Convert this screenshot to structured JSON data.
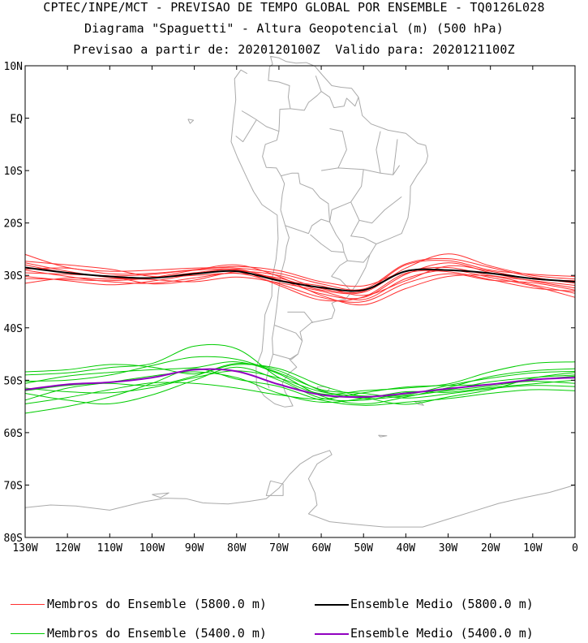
{
  "header": {
    "line1": "CPTEC/INPE/MCT - PREVISAO DE TEMPO GLOBAL POR ENSEMBLE - TQ0126L028",
    "line2": "Diagrama \"Spaguetti\" - Altura Geopotencial (m) (500 hPa)",
    "line3": "Previsao a partir de: 2020120100Z  Valido para: 2020121100Z"
  },
  "map": {
    "region": "South America and South Atlantic / South Pacific",
    "lon_range": [
      -130,
      0
    ],
    "lat_range": [
      -80,
      10
    ],
    "y_tick_labels": [
      "10N",
      "EQ",
      "10S",
      "20S",
      "30S",
      "40S",
      "50S",
      "60S",
      "70S",
      "80S"
    ],
    "y_tick_values": [
      10,
      0,
      -10,
      -20,
      -30,
      -40,
      -50,
      -60,
      -70,
      -80
    ],
    "x_tick_labels": [
      "130W",
      "120W",
      "110W",
      "100W",
      "90W",
      "80W",
      "70W",
      "60W",
      "50W",
      "40W",
      "30W",
      "20W",
      "10W",
      "0"
    ],
    "x_tick_values": [
      -130,
      -120,
      -110,
      -100,
      -90,
      -80,
      -70,
      -60,
      -50,
      -40,
      -30,
      -20,
      -10,
      0
    ],
    "coastline_color": "#aaaaaa",
    "grid": false
  },
  "legend": {
    "members_5800": {
      "label": "Membros do Ensemble (5800.0 m)",
      "color": "#ff3030"
    },
    "mean_5800": {
      "label": "Ensemble Medio (5800.0 m)",
      "color": "#000000"
    },
    "members_5400": {
      "label": "Membros do Ensemble (5400.0 m)",
      "color": "#00cc00"
    },
    "mean_5400": {
      "label": "Ensemble Medio (5400.0 m)",
      "color": "#9000c0"
    }
  },
  "chart_data": {
    "type": "line",
    "title": "Diagrama \"Spaguetti\" - Altura Geopotencial (m) (500 hPa)",
    "xlabel": "",
    "ylabel": "",
    "xlim": [
      -130,
      0
    ],
    "ylim": [
      -80,
      10
    ],
    "x": [
      -130,
      -120,
      -110,
      -100,
      -90,
      -80,
      -70,
      -60,
      -50,
      -40,
      -30,
      -20,
      -10,
      0
    ],
    "series": [
      {
        "name": "Ensemble Medio (5800.0 m)",
        "color": "#000000",
        "y": [
          -28.5,
          -29.5,
          -30.2,
          -30.5,
          -29.7,
          -29.2,
          -31.0,
          -32.3,
          -32.8,
          -29.2,
          -29.0,
          -29.6,
          -30.6,
          -31.2
        ]
      },
      {
        "name": "Ensemble Medio (5400.0 m)",
        "color": "#9000c0",
        "y": [
          -51.8,
          -50.8,
          -50.4,
          -49.5,
          -48.0,
          -48.3,
          -50.8,
          -52.8,
          -53.2,
          -52.5,
          -51.6,
          -50.8,
          -49.9,
          -49.5
        ]
      }
    ],
    "members_5800": [
      [
        -26.0,
        -28.5,
        -29.2,
        -29.0,
        -28.6,
        -28.6,
        -29.6,
        -31.6,
        -32.6,
        -27.8,
        -26.8,
        -28.5,
        -30.3,
        -31.5
      ],
      [
        -27.3,
        -28.0,
        -28.8,
        -30.2,
        -30.0,
        -29.6,
        -30.5,
        -32.8,
        -33.2,
        -28.6,
        -25.9,
        -28.2,
        -30.0,
        -30.7
      ],
      [
        -28.0,
        -29.5,
        -30.1,
        -29.8,
        -29.0,
        -28.9,
        -30.8,
        -33.5,
        -34.2,
        -29.8,
        -27.6,
        -29.5,
        -31.1,
        -32.4
      ],
      [
        -29.0,
        -30.2,
        -31.2,
        -31.5,
        -30.5,
        -29.6,
        -31.6,
        -34.2,
        -35.0,
        -31.5,
        -29.7,
        -30.9,
        -31.4,
        -32.8
      ],
      [
        -30.2,
        -31.0,
        -31.8,
        -31.1,
        -29.8,
        -28.8,
        -30.9,
        -32.0,
        -33.8,
        -31.0,
        -28.2,
        -29.2,
        -30.7,
        -31.0
      ],
      [
        -31.5,
        -30.5,
        -30.7,
        -30.4,
        -29.0,
        -28.0,
        -30.2,
        -33.8,
        -35.6,
        -32.5,
        -30.2,
        -30.1,
        -31.8,
        -33.4
      ],
      [
        -27.6,
        -29.2,
        -30.4,
        -30.8,
        -31.2,
        -30.3,
        -31.4,
        -33.0,
        -34.6,
        -30.6,
        -29.0,
        -30.4,
        -32.0,
        -34.2
      ],
      [
        -29.5,
        -29.8,
        -30.2,
        -31.6,
        -30.9,
        -29.3,
        -30.0,
        -32.5,
        -33.0,
        -28.0,
        -27.2,
        -29.0,
        -29.8,
        -30.2
      ],
      [
        -28.8,
        -28.6,
        -29.7,
        -29.6,
        -28.9,
        -28.3,
        -29.1,
        -31.2,
        -32.0,
        -29.2,
        -28.5,
        -30.0,
        -31.0,
        -31.9
      ],
      [
        -30.6,
        -30.8,
        -31.0,
        -30.5,
        -29.5,
        -29.0,
        -31.9,
        -34.7,
        -34.1,
        -29.6,
        -29.3,
        -30.8,
        -32.4,
        -33.0
      ]
    ],
    "members_5400": [
      [
        -49.0,
        -48.6,
        -47.6,
        -46.8,
        -43.5,
        -44.0,
        -49.5,
        -52.6,
        -52.0,
        -51.5,
        -50.7,
        -48.4,
        -46.8,
        -46.5
      ],
      [
        -50.6,
        -49.2,
        -48.5,
        -48.0,
        -47.6,
        -46.5,
        -48.8,
        -53.0,
        -54.5,
        -53.2,
        -51.4,
        -49.3,
        -48.2,
        -47.8
      ],
      [
        -53.8,
        -51.5,
        -50.4,
        -49.2,
        -48.4,
        -49.5,
        -52.5,
        -54.2,
        -53.5,
        -52.2,
        -52.3,
        -51.4,
        -50.7,
        -50.0
      ],
      [
        -56.3,
        -55.0,
        -53.2,
        -50.6,
        -47.8,
        -49.8,
        -51.2,
        -53.8,
        -54.8,
        -54.2,
        -53.5,
        -52.5,
        -51.8,
        -52.0
      ],
      [
        -51.5,
        -52.2,
        -52.4,
        -51.4,
        -49.5,
        -48.2,
        -49.6,
        -52.2,
        -53.0,
        -52.8,
        -51.0,
        -49.6,
        -48.6,
        -48.3
      ],
      [
        -52.5,
        -53.8,
        -54.5,
        -52.8,
        -50.0,
        -47.5,
        -50.0,
        -53.4,
        -53.8,
        -52.4,
        -51.8,
        -50.3,
        -49.5,
        -49.0
      ],
      [
        -50.2,
        -50.0,
        -49.0,
        -47.2,
        -45.6,
        -46.0,
        -48.6,
        -51.8,
        -52.5,
        -53.4,
        -52.6,
        -51.6,
        -51.0,
        -51.2
      ],
      [
        -54.5,
        -53.3,
        -51.8,
        -50.5,
        -50.6,
        -51.5,
        -52.8,
        -53.6,
        -52.4,
        -51.3,
        -51.0,
        -50.8,
        -50.2,
        -50.6
      ],
      [
        -48.4,
        -48.0,
        -47.0,
        -47.5,
        -48.8,
        -47.0,
        -47.8,
        -51.0,
        -53.2,
        -54.6,
        -53.2,
        -51.8,
        -49.6,
        -48.5
      ],
      [
        -52.0,
        -51.0,
        -50.6,
        -51.0,
        -49.2,
        -46.8,
        -48.2,
        -52.0,
        -53.5,
        -53.0,
        -52.0,
        -51.1,
        -50.0,
        -49.2
      ]
    ]
  }
}
